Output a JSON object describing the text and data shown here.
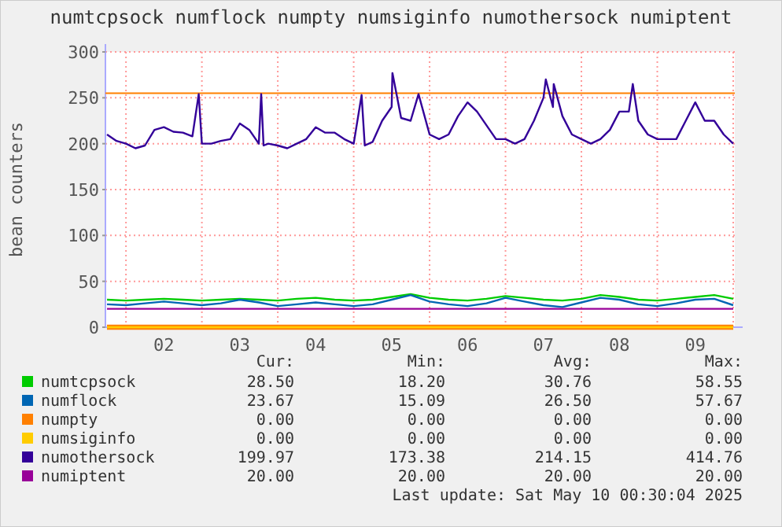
{
  "chart_data": {
    "type": "line",
    "title": "numtcpsock numflock numpty numsiginfo numothersock numiptent",
    "ylabel": "bean counters",
    "xlim": [
      "2025-05-01T17:30",
      "2025-05-10T00:30"
    ],
    "xticks": [
      {
        "value": "2025-05-02T00:00",
        "label": null
      },
      {
        "value": "2025-05-02T12:00",
        "label": "02"
      },
      {
        "value": "2025-05-03T00:00",
        "label": null
      },
      {
        "value": "2025-05-03T12:00",
        "label": "03"
      },
      {
        "value": "2025-05-04T00:00",
        "label": null
      },
      {
        "value": "2025-05-04T12:00",
        "label": "04"
      },
      {
        "value": "2025-05-05T00:00",
        "label": null
      },
      {
        "value": "2025-05-05T12:00",
        "label": "05"
      },
      {
        "value": "2025-05-06T00:00",
        "label": null
      },
      {
        "value": "2025-05-06T12:00",
        "label": "06"
      },
      {
        "value": "2025-05-07T00:00",
        "label": null
      },
      {
        "value": "2025-05-07T12:00",
        "label": "07"
      },
      {
        "value": "2025-05-08T00:00",
        "label": null
      },
      {
        "value": "2025-05-08T12:00",
        "label": "08"
      },
      {
        "value": "2025-05-09T00:00",
        "label": null
      },
      {
        "value": "2025-05-09T12:00",
        "label": "09"
      },
      {
        "value": "2025-05-10T00:00",
        "label": null
      }
    ],
    "ylim": [
      0,
      300
    ],
    "yticks": [
      0,
      50,
      100,
      150,
      200,
      250,
      300
    ],
    "grid": true,
    "legend": "bottom left",
    "marker": "none",
    "line_style": "solid",
    "ref_lines": [
      {
        "axis": "y",
        "value": 255,
        "label": null,
        "color": "#ff8000"
      }
    ],
    "series": [
      {
        "name": "numtcpsock",
        "color": "#00cc00",
        "x": [
          "2025-05-01T18:00",
          "2025-05-02T00:00",
          "2025-05-02T06:00",
          "2025-05-02T12:00",
          "2025-05-02T18:00",
          "2025-05-03T00:00",
          "2025-05-03T06:00",
          "2025-05-03T12:00",
          "2025-05-03T18:00",
          "2025-05-04T00:00",
          "2025-05-04T06:00",
          "2025-05-04T12:00",
          "2025-05-04T18:00",
          "2025-05-05T00:00",
          "2025-05-05T06:00",
          "2025-05-05T12:00",
          "2025-05-05T18:00",
          "2025-05-06T00:00",
          "2025-05-06T06:00",
          "2025-05-06T12:00",
          "2025-05-06T18:00",
          "2025-05-07T00:00",
          "2025-05-07T06:00",
          "2025-05-07T12:00",
          "2025-05-07T18:00",
          "2025-05-08T00:00",
          "2025-05-08T06:00",
          "2025-05-08T12:00",
          "2025-05-08T18:00",
          "2025-05-09T00:00",
          "2025-05-09T06:00",
          "2025-05-09T12:00",
          "2025-05-09T18:00",
          "2025-05-10T00:00"
        ],
        "values": [
          30,
          29,
          30,
          31,
          30,
          29,
          30,
          31,
          30,
          29,
          31,
          32,
          30,
          29,
          30,
          33,
          36,
          32,
          30,
          29,
          31,
          34,
          32,
          30,
          29,
          31,
          35,
          33,
          30,
          29,
          31,
          33,
          35,
          31
        ]
      },
      {
        "name": "numflock",
        "color": "#0066b3",
        "x": [
          "2025-05-01T18:00",
          "2025-05-02T00:00",
          "2025-05-02T06:00",
          "2025-05-02T12:00",
          "2025-05-02T18:00",
          "2025-05-03T00:00",
          "2025-05-03T06:00",
          "2025-05-03T12:00",
          "2025-05-03T18:00",
          "2025-05-04T00:00",
          "2025-05-04T06:00",
          "2025-05-04T12:00",
          "2025-05-04T18:00",
          "2025-05-05T00:00",
          "2025-05-05T06:00",
          "2025-05-05T12:00",
          "2025-05-05T18:00",
          "2025-05-06T00:00",
          "2025-05-06T06:00",
          "2025-05-06T12:00",
          "2025-05-06T18:00",
          "2025-05-07T00:00",
          "2025-05-07T06:00",
          "2025-05-07T12:00",
          "2025-05-07T18:00",
          "2025-05-08T00:00",
          "2025-05-08T06:00",
          "2025-05-08T12:00",
          "2025-05-08T18:00",
          "2025-05-09T00:00",
          "2025-05-09T06:00",
          "2025-05-09T12:00",
          "2025-05-09T18:00",
          "2025-05-10T00:00"
        ],
        "values": [
          25,
          24,
          26,
          28,
          26,
          24,
          26,
          30,
          27,
          23,
          25,
          27,
          25,
          23,
          25,
          30,
          35,
          28,
          25,
          23,
          26,
          32,
          28,
          24,
          22,
          27,
          32,
          30,
          25,
          23,
          26,
          30,
          31,
          24
        ]
      },
      {
        "name": "numpty",
        "color": "#ff8000",
        "x": [
          "2025-05-01T18:00",
          "2025-05-10T00:00"
        ],
        "values": [
          0,
          0
        ]
      },
      {
        "name": "numsiginfo",
        "color": "#ffcc00",
        "x": [
          "2025-05-01T18:00",
          "2025-05-10T00:00"
        ],
        "values": [
          0,
          0
        ]
      },
      {
        "name": "numothersock",
        "color": "#330099",
        "x": [
          "2025-05-01T18:00",
          "2025-05-01T21:00",
          "2025-05-02T00:00",
          "2025-05-02T03:00",
          "2025-05-02T06:00",
          "2025-05-02T09:00",
          "2025-05-02T12:00",
          "2025-05-02T15:00",
          "2025-05-02T18:00",
          "2025-05-02T21:00",
          "2025-05-02T23:00",
          "2025-05-03T00:00",
          "2025-05-03T03:00",
          "2025-05-03T06:00",
          "2025-05-03T09:00",
          "2025-05-03T12:00",
          "2025-05-03T15:00",
          "2025-05-03T18:00",
          "2025-05-03T18:45",
          "2025-05-03T19:30",
          "2025-05-03T21:00",
          "2025-05-04T00:00",
          "2025-05-04T03:00",
          "2025-05-04T06:00",
          "2025-05-04T09:00",
          "2025-05-04T12:00",
          "2025-05-04T15:00",
          "2025-05-04T18:00",
          "2025-05-04T21:00",
          "2025-05-05T00:00",
          "2025-05-05T02:30",
          "2025-05-05T03:30",
          "2025-05-05T06:00",
          "2025-05-05T09:00",
          "2025-05-05T12:00",
          "2025-05-05T12:15",
          "2025-05-05T15:00",
          "2025-05-05T18:00",
          "2025-05-05T20:30",
          "2025-05-06T00:00",
          "2025-05-06T03:00",
          "2025-05-06T06:00",
          "2025-05-06T09:00",
          "2025-05-06T12:00",
          "2025-05-06T15:00",
          "2025-05-06T18:00",
          "2025-05-06T21:00",
          "2025-05-07T00:00",
          "2025-05-07T03:00",
          "2025-05-07T06:00",
          "2025-05-07T09:00",
          "2025-05-07T12:00",
          "2025-05-07T12:45",
          "2025-05-07T15:00",
          "2025-05-07T15:15",
          "2025-05-07T18:00",
          "2025-05-07T21:00",
          "2025-05-08T00:00",
          "2025-05-08T03:00",
          "2025-05-08T06:00",
          "2025-05-08T09:00",
          "2025-05-08T12:00",
          "2025-05-08T15:00",
          "2025-05-08T16:15",
          "2025-05-08T18:00",
          "2025-05-08T21:00",
          "2025-05-09T00:00",
          "2025-05-09T03:00",
          "2025-05-09T06:00",
          "2025-05-09T09:00",
          "2025-05-09T12:00",
          "2025-05-09T15:00",
          "2025-05-09T18:00",
          "2025-05-09T21:00",
          "2025-05-10T00:00"
        ],
        "values": [
          210,
          203,
          200,
          195,
          198,
          215,
          218,
          213,
          212,
          208,
          254,
          200,
          200,
          203,
          205,
          222,
          215,
          200,
          254,
          198,
          200,
          198,
          195,
          200,
          205,
          218,
          212,
          212,
          205,
          200,
          253,
          198,
          202,
          225,
          240,
          277,
          228,
          225,
          254,
          210,
          205,
          210,
          230,
          245,
          235,
          220,
          205,
          205,
          200,
          205,
          225,
          250,
          270,
          240,
          265,
          230,
          210,
          205,
          200,
          205,
          215,
          235,
          235,
          265,
          225,
          210,
          205,
          205,
          205,
          225,
          245,
          225,
          225,
          210,
          200
        ]
      },
      {
        "name": "numiptent",
        "color": "#990099",
        "x": [
          "2025-05-01T18:00",
          "2025-05-10T00:00"
        ],
        "values": [
          20,
          20
        ]
      }
    ],
    "annotations": [
      "Cur:",
      "Min:",
      "Avg:",
      "Max:",
      "28.50",
      "18.20",
      "30.76",
      "58.55",
      "23.67",
      "15.09",
      "26.50",
      "57.67",
      "0.00",
      "0.00",
      "0.00",
      "0.00",
      "0.00",
      "0.00",
      "0.00",
      "0.00",
      "199.97",
      "173.38",
      "214.15",
      "414.76",
      "20.00",
      "20.00",
      "20.00",
      "20.00",
      "Last update: Sat May 10 00:30:04 2025"
    ]
  }
}
